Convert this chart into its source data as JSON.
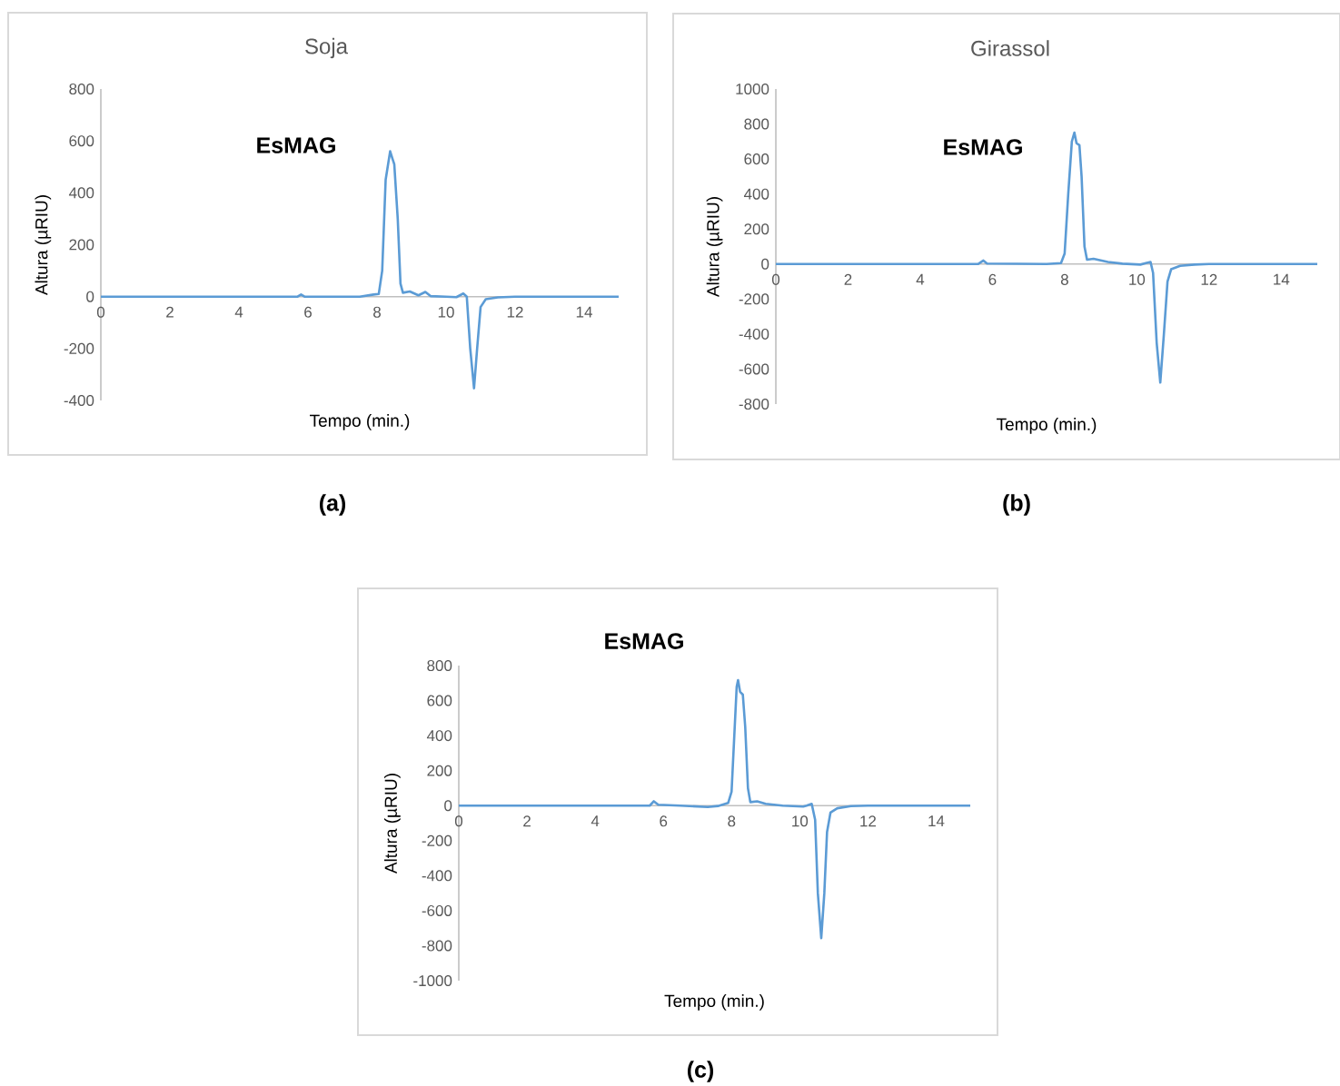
{
  "chart_data": [
    {
      "type": "line",
      "title": "Soja",
      "xlabel": "Tempo (min.)",
      "ylabel": "Altura (µRIU)",
      "annotations": [
        "EsMAG",
        "(a)"
      ],
      "xlim": [
        0,
        15
      ],
      "ylim": [
        -400,
        800
      ],
      "xticks": [
        0,
        2,
        4,
        6,
        8,
        10,
        12,
        14
      ],
      "yticks": [
        -400,
        -200,
        0,
        200,
        400,
        600,
        800
      ],
      "series": [
        {
          "color": "#5b9bd5",
          "x": [
            0,
            5.7,
            5.8,
            5.9,
            7.5,
            7.9,
            8.05,
            8.15,
            8.25,
            8.38,
            8.45,
            8.5,
            8.6,
            8.68,
            8.75,
            8.95,
            9.2,
            9.4,
            9.55,
            10.0,
            10.3,
            10.5,
            10.6,
            10.7,
            10.81,
            10.9,
            11.0,
            11.15,
            11.5,
            12,
            15
          ],
          "values": [
            0,
            0,
            8,
            0,
            0,
            8,
            10,
            100,
            450,
            560,
            530,
            510,
            300,
            50,
            15,
            20,
            5,
            18,
            2,
            0,
            -2,
            12,
            0,
            -200,
            -353,
            -200,
            -40,
            -10,
            -3,
            0,
            0
          ]
        }
      ]
    },
    {
      "type": "line",
      "title": "Girassol",
      "xlabel": "Tempo (min.)",
      "ylabel": "Altura (µRIU)",
      "annotations": [
        "EsMAG",
        "(b)"
      ],
      "xlim": [
        0,
        15
      ],
      "ylim": [
        -800,
        1000
      ],
      "xticks": [
        0,
        2,
        4,
        6,
        8,
        10,
        12,
        14
      ],
      "yticks": [
        -800,
        -600,
        -400,
        -200,
        0,
        200,
        400,
        600,
        800,
        1000
      ],
      "series": [
        {
          "color": "#5b9bd5",
          "x": [
            0,
            5.6,
            5.75,
            5.85,
            7.5,
            7.9,
            8.0,
            8.1,
            8.2,
            8.27,
            8.33,
            8.41,
            8.47,
            8.55,
            8.62,
            8.8,
            9.2,
            9.6,
            10.1,
            10.25,
            10.38,
            10.45,
            10.55,
            10.65,
            10.75,
            10.85,
            10.95,
            11.2,
            11.6,
            12,
            15
          ],
          "values": [
            0,
            0,
            20,
            3,
            0,
            5,
            60,
            400,
            700,
            751,
            690,
            679,
            500,
            100,
            25,
            30,
            12,
            2,
            -3,
            5,
            12,
            -50,
            -450,
            -677,
            -400,
            -100,
            -30,
            -10,
            -3,
            0,
            0
          ]
        }
      ]
    },
    {
      "type": "line",
      "xlabel": "Tempo (min.)",
      "ylabel": "Altura (µRIU)",
      "annotations": [
        "EsMAG",
        "(c)"
      ],
      "xlim": [
        0,
        15
      ],
      "ylim": [
        -1000,
        800
      ],
      "xticks": [
        0,
        2,
        4,
        6,
        8,
        10,
        12,
        14
      ],
      "yticks": [
        -1000,
        -800,
        -600,
        -400,
        -200,
        0,
        200,
        400,
        600,
        800
      ],
      "series": [
        {
          "color": "#5b9bd5",
          "x": [
            0,
            5.6,
            5.72,
            5.85,
            6.5,
            7.3,
            7.6,
            7.9,
            8.0,
            8.08,
            8.15,
            8.19,
            8.25,
            8.33,
            8.4,
            8.48,
            8.55,
            8.75,
            9.0,
            9.5,
            10.1,
            10.2,
            10.35,
            10.45,
            10.53,
            10.63,
            10.72,
            10.8,
            10.9,
            11.1,
            11.5,
            12,
            15
          ],
          "values": [
            0,
            0,
            25,
            5,
            0,
            -8,
            -2,
            15,
            80,
            400,
            680,
            717,
            650,
            634,
            450,
            100,
            20,
            25,
            10,
            0,
            -5,
            0,
            10,
            -80,
            -500,
            -757,
            -500,
            -150,
            -40,
            -15,
            -3,
            0,
            0
          ]
        }
      ]
    }
  ]
}
